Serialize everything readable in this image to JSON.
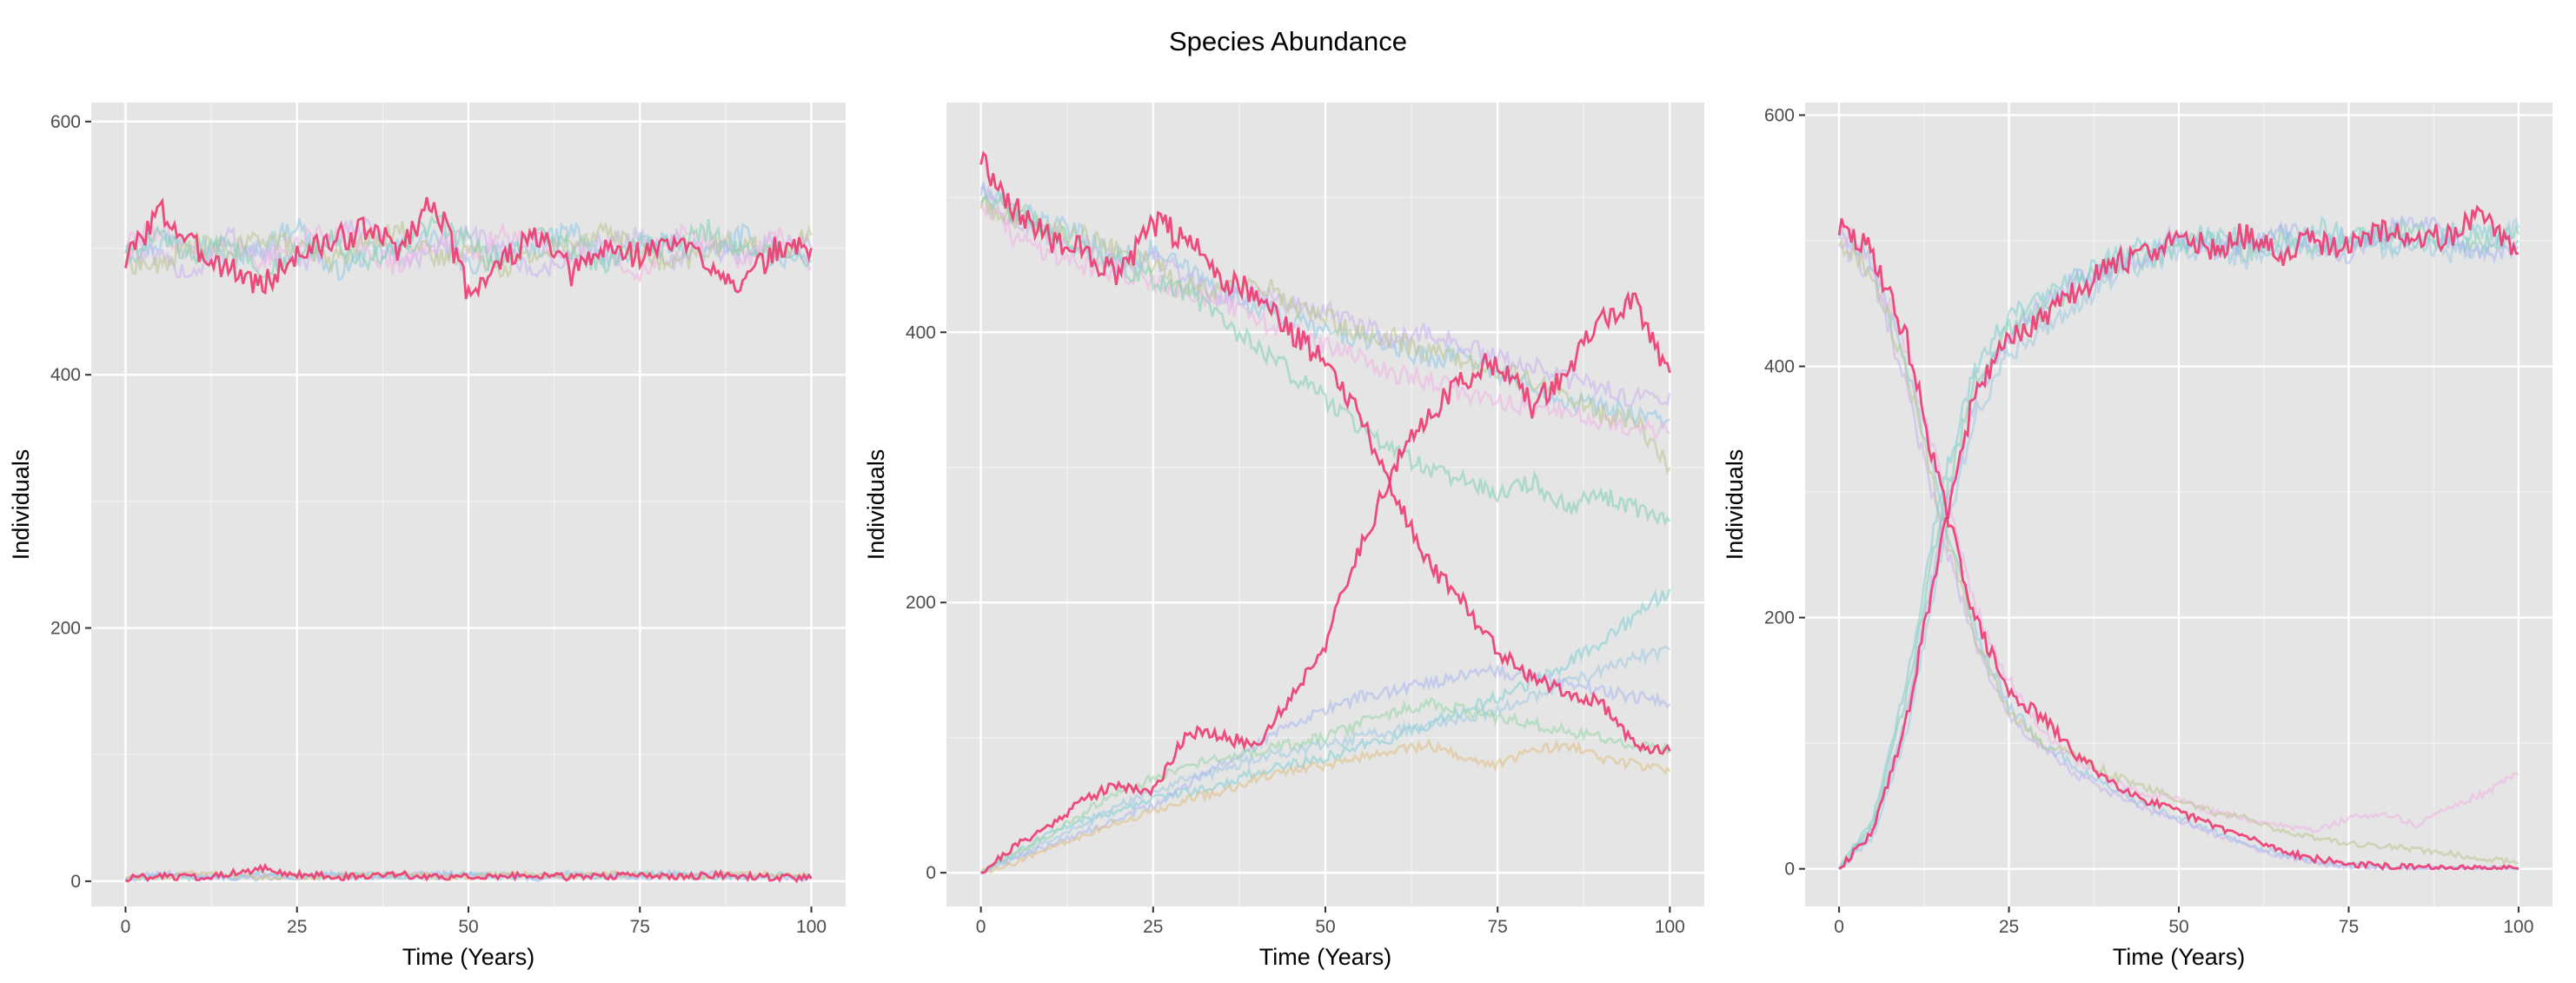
{
  "title": "Species Abundance",
  "colors": {
    "panel_background": "#e5e5e5",
    "gridline": "#ffffff",
    "highlight": "#f0306b",
    "palette": [
      "#8ec9e8",
      "#c9b0f0",
      "#f0b3e5",
      "#b9c78f",
      "#7fcfb1",
      "#80cfd6",
      "#9ecae1",
      "#a9b7f0",
      "#e0bd7f",
      "#95d6a8"
    ]
  },
  "chart_data": [
    {
      "type": "line",
      "panel": 1,
      "xlabel": "Time (Years)",
      "ylabel": "Individuals",
      "xlim": [
        -5,
        105
      ],
      "ylim": [
        -20,
        615
      ],
      "x_ticks": [
        0,
        25,
        50,
        75,
        100
      ],
      "x_tick_labels": [
        "0",
        "25",
        "50",
        "75",
        "100"
      ],
      "y_ticks": [
        0,
        200,
        400,
        600
      ],
      "y_tick_labels": [
        "0",
        "200",
        "400",
        "600"
      ],
      "x": [
        0,
        5,
        10,
        15,
        20,
        25,
        30,
        35,
        40,
        45,
        50,
        55,
        60,
        65,
        70,
        75,
        80,
        85,
        90,
        95,
        100
      ],
      "highlight_series": [
        {
          "values": [
            490,
            530,
            500,
            485,
            470,
            495,
            505,
            515,
            500,
            540,
            465,
            490,
            510,
            480,
            500,
            495,
            505,
            490,
            470,
            500,
            500
          ]
        },
        {
          "values": [
            2,
            4,
            3,
            6,
            10,
            5,
            4,
            3,
            5,
            4,
            3,
            4,
            5,
            3,
            4,
            4,
            3,
            5,
            4,
            3,
            2
          ]
        }
      ],
      "background_series": [
        {
          "values": [
            495,
            505,
            510,
            490,
            500,
            520,
            480,
            495,
            500,
            510,
            485,
            495,
            500,
            515,
            490,
            500,
            505,
            495,
            510,
            490,
            495
          ]
        },
        {
          "values": [
            500,
            490,
            480,
            510,
            495,
            485,
            505,
            520,
            490,
            495,
            510,
            500,
            480,
            495,
            505,
            510,
            490,
            500,
            495,
            505,
            500
          ]
        },
        {
          "values": [
            505,
            515,
            495,
            500,
            490,
            505,
            515,
            500,
            485,
            505,
            495,
            510,
            505,
            490,
            500,
            480,
            510,
            505,
            490,
            510,
            485
          ]
        },
        {
          "values": [
            490,
            485,
            505,
            495,
            510,
            500,
            490,
            505,
            515,
            490,
            500,
            485,
            495,
            505,
            515,
            495,
            485,
            500,
            505,
            495,
            510
          ]
        },
        {
          "values": [
            500,
            510,
            490,
            505,
            485,
            495,
            510,
            490,
            500,
            520,
            505,
            490,
            510,
            500,
            485,
            505,
            500,
            515,
            495,
            500,
            490
          ]
        },
        {
          "values": [
            3,
            5,
            2,
            4,
            6,
            3,
            5,
            4,
            3,
            5,
            6,
            4,
            3,
            5,
            4,
            6,
            5,
            3,
            4,
            5,
            3
          ]
        },
        {
          "values": [
            1,
            3,
            4,
            3,
            2,
            5,
            3,
            6,
            4,
            3,
            5,
            3,
            4,
            6,
            3,
            4,
            7,
            4,
            3,
            4,
            4
          ]
        },
        {
          "values": [
            2,
            6,
            5,
            3,
            4,
            3,
            6,
            3,
            5,
            6,
            4,
            5,
            2,
            4,
            5,
            3,
            4,
            6,
            5,
            3,
            2
          ]
        },
        {
          "values": [
            4,
            3,
            6,
            5,
            3,
            4,
            3,
            5,
            6,
            4,
            3,
            6,
            5,
            3,
            6,
            5,
            3,
            4,
            6,
            5,
            4
          ]
        }
      ]
    },
    {
      "type": "line",
      "panel": 2,
      "xlabel": "Time (Years)",
      "ylabel": "Individuals",
      "xlim": [
        -5,
        105
      ],
      "ylim": [
        -25,
        570
      ],
      "x_ticks": [
        0,
        25,
        50,
        75,
        100
      ],
      "x_tick_labels": [
        "0",
        "25",
        "50",
        "75",
        "100"
      ],
      "y_ticks": [
        0,
        200,
        400
      ],
      "y_tick_labels": [
        "0",
        "200",
        "400"
      ],
      "x": [
        0,
        5,
        10,
        15,
        20,
        25,
        30,
        35,
        40,
        45,
        50,
        55,
        60,
        65,
        70,
        75,
        80,
        85,
        90,
        95,
        100
      ],
      "highlight_series": [
        {
          "values": [
            530,
            490,
            470,
            460,
            440,
            480,
            470,
            440,
            430,
            400,
            380,
            340,
            280,
            230,
            200,
            165,
            145,
            135,
            125,
            95,
            90
          ]
        },
        {
          "values": [
            0,
            20,
            35,
            55,
            65,
            60,
            105,
            100,
            95,
            130,
            170,
            240,
            300,
            340,
            365,
            380,
            345,
            370,
            410,
            420,
            370
          ]
        }
      ],
      "background_series": [
        {
          "values": [
            505,
            490,
            480,
            470,
            455,
            460,
            445,
            430,
            420,
            410,
            400,
            395,
            390,
            380,
            385,
            370,
            360,
            350,
            345,
            340,
            335
          ]
        },
        {
          "values": [
            510,
            480,
            470,
            465,
            450,
            455,
            440,
            425,
            430,
            420,
            415,
            405,
            395,
            400,
            390,
            380,
            375,
            365,
            360,
            350,
            355
          ]
        },
        {
          "values": [
            500,
            470,
            460,
            450,
            445,
            440,
            430,
            420,
            410,
            400,
            390,
            380,
            370,
            365,
            355,
            350,
            345,
            340,
            335,
            330,
            325
          ]
        },
        {
          "values": [
            495,
            485,
            475,
            470,
            460,
            450,
            435,
            430,
            440,
            420,
            410,
            400,
            395,
            385,
            380,
            370,
            365,
            355,
            340,
            335,
            300
          ]
        },
        {
          "values": [
            500,
            490,
            475,
            460,
            450,
            440,
            430,
            410,
            390,
            370,
            350,
            330,
            310,
            300,
            290,
            280,
            290,
            270,
            280,
            270,
            260
          ]
        },
        {
          "values": [
            0,
            15,
            30,
            40,
            45,
            55,
            60,
            65,
            75,
            80,
            85,
            95,
            100,
            110,
            120,
            130,
            140,
            155,
            170,
            190,
            210
          ]
        },
        {
          "values": [
            0,
            10,
            25,
            35,
            50,
            60,
            70,
            75,
            85,
            90,
            95,
            100,
            105,
            110,
            115,
            120,
            130,
            140,
            150,
            160,
            165
          ]
        },
        {
          "values": [
            0,
            12,
            20,
            30,
            40,
            50,
            65,
            80,
            95,
            110,
            120,
            130,
            135,
            140,
            145,
            150,
            145,
            140,
            135,
            130,
            125
          ]
        },
        {
          "values": [
            0,
            8,
            18,
            28,
            38,
            45,
            55,
            60,
            70,
            75,
            80,
            85,
            90,
            95,
            85,
            80,
            90,
            95,
            85,
            80,
            75
          ]
        },
        {
          "values": [
            0,
            14,
            28,
            45,
            60,
            70,
            80,
            85,
            90,
            95,
            100,
            110,
            120,
            125,
            120,
            115,
            110,
            105,
            100,
            95,
            90
          ]
        }
      ]
    },
    {
      "type": "line",
      "panel": 3,
      "xlabel": "Time (Years)",
      "ylabel": "Individuals",
      "xlim": [
        -5,
        105
      ],
      "ylim": [
        -30,
        610
      ],
      "x_ticks": [
        0,
        25,
        50,
        75,
        100
      ],
      "x_tick_labels": [
        "0",
        "25",
        "50",
        "75",
        "100"
      ],
      "y_ticks": [
        0,
        200,
        400,
        600
      ],
      "y_tick_labels": [
        "0",
        "200",
        "400",
        "600"
      ],
      "x": [
        0,
        5,
        10,
        15,
        20,
        25,
        30,
        35,
        40,
        45,
        50,
        55,
        60,
        65,
        70,
        75,
        80,
        85,
        90,
        95,
        100
      ],
      "highlight_series": [
        {
          "values": [
            510,
            490,
            420,
            300,
            200,
            140,
            120,
            90,
            70,
            55,
            45,
            35,
            25,
            15,
            8,
            4,
            2,
            1,
            0,
            0,
            0
          ]
        },
        {
          "values": [
            0,
            30,
            120,
            260,
            380,
            420,
            440,
            460,
            480,
            490,
            500,
            495,
            505,
            490,
            500,
            495,
            510,
            500,
            505,
            520,
            490
          ]
        }
      ],
      "background_series": [
        {
          "values": [
            505,
            480,
            400,
            290,
            190,
            130,
            100,
            80,
            65,
            50,
            40,
            30,
            20,
            12,
            6,
            3,
            1,
            0,
            0,
            0,
            0
          ]
        },
        {
          "values": [
            500,
            470,
            380,
            270,
            180,
            120,
            95,
            75,
            60,
            48,
            38,
            28,
            18,
            10,
            5,
            2,
            1,
            0,
            0,
            0,
            0
          ]
        },
        {
          "values": [
            510,
            485,
            410,
            310,
            210,
            150,
            110,
            85,
            70,
            60,
            55,
            45,
            40,
            35,
            30,
            40,
            45,
            35,
            50,
            60,
            75
          ]
        },
        {
          "values": [
            500,
            475,
            395,
            280,
            185,
            125,
            100,
            90,
            75,
            65,
            55,
            45,
            40,
            30,
            25,
            20,
            18,
            15,
            12,
            8,
            5
          ]
        },
        {
          "values": [
            0,
            35,
            140,
            280,
            390,
            430,
            445,
            465,
            480,
            485,
            495,
            500,
            490,
            505,
            495,
            500,
            505,
            510,
            495,
            500,
            505
          ]
        },
        {
          "values": [
            0,
            40,
            150,
            300,
            400,
            440,
            455,
            470,
            485,
            495,
            500,
            505,
            500,
            495,
            510,
            505,
            500,
            495,
            510,
            505,
            500
          ]
        },
        {
          "values": [
            0,
            25,
            110,
            250,
            360,
            410,
            430,
            450,
            470,
            480,
            490,
            495,
            485,
            500,
            490,
            505,
            495,
            500,
            490,
            495,
            510
          ]
        },
        {
          "values": [
            0,
            32,
            125,
            270,
            375,
            425,
            450,
            470,
            475,
            490,
            505,
            490,
            500,
            510,
            500,
            490,
            505,
            520,
            500,
            490,
            495
          ]
        }
      ]
    }
  ]
}
